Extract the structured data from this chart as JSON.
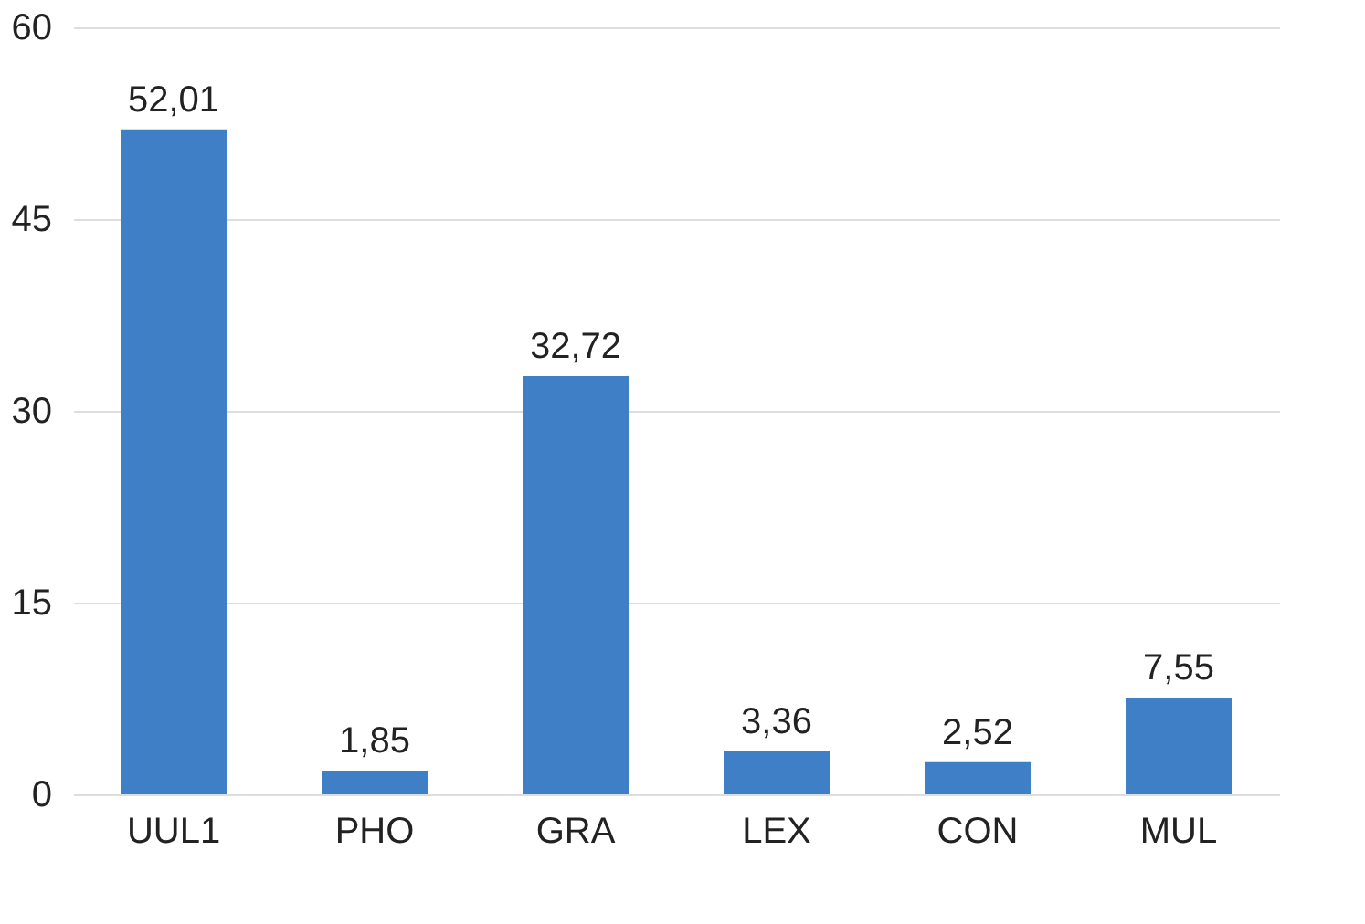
{
  "chart_data": {
    "type": "bar",
    "categories": [
      "UUL1",
      "PHO",
      "GRA",
      "LEX",
      "CON",
      "MUL"
    ],
    "values": [
      52.01,
      1.85,
      32.72,
      3.36,
      2.52,
      7.55
    ],
    "value_labels": [
      "52,01",
      "1,85",
      "32,72",
      "3,36",
      "2,52",
      "7,55"
    ],
    "color": "#3f7fc6",
    "ylim": [
      0,
      60
    ],
    "yticks": [
      0,
      15,
      30,
      45,
      60
    ],
    "grid": "y"
  }
}
